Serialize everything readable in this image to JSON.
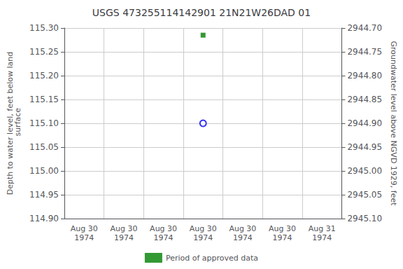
{
  "chart_data": {
    "type": "scatter",
    "title": "USGS 473255114142901 21N21W26DAD 01",
    "categories": [
      "Aug 30\n1974",
      "Aug 30\n1974",
      "Aug 30\n1974",
      "Aug 30\n1974",
      "Aug 30\n1974",
      "Aug 30\n1974",
      "Aug 31\n1974"
    ],
    "ylabel": "Depth to water level, feet below land\n surface",
    "y2label": "Groundwater level above NGVD 1929, feet",
    "ylim": [
      114.9,
      115.3
    ],
    "yticks": [
      {
        "value": 114.9,
        "label": "114.90"
      },
      114.95,
      {
        "value": 115.0,
        "label": "115.00"
      },
      115.05,
      {
        "value": 115.1,
        "label": "115.10"
      },
      115.15,
      {
        "value": 115.2,
        "label": "115.20"
      },
      115.25,
      {
        "value": 115.3,
        "label": "115.30"
      }
    ],
    "y2lim": [
      2945.1,
      2944.7
    ],
    "y2ticks": [
      {
        "value": 2945.1,
        "label": "2945.10"
      },
      2945.05,
      {
        "value": 2945.0,
        "label": "2945.00"
      },
      2944.95,
      {
        "value": 2944.9,
        "label": "2944.90"
      },
      2944.85,
      {
        "value": 2944.8,
        "label": "2944.80"
      },
      2944.75,
      {
        "value": 2944.7,
        "label": "2944.70"
      }
    ],
    "series": [
      {
        "color": "#0000ff",
        "marker": "open_circle",
        "values": [
          null,
          null,
          null,
          115.1,
          null,
          null,
          null
        ]
      },
      {
        "name": "Period of approved data",
        "color": "#008000",
        "marker": "square",
        "values": [
          null,
          null,
          null,
          115.285,
          null,
          null,
          null
        ]
      }
    ],
    "grid": true,
    "legend": "bottom"
  }
}
